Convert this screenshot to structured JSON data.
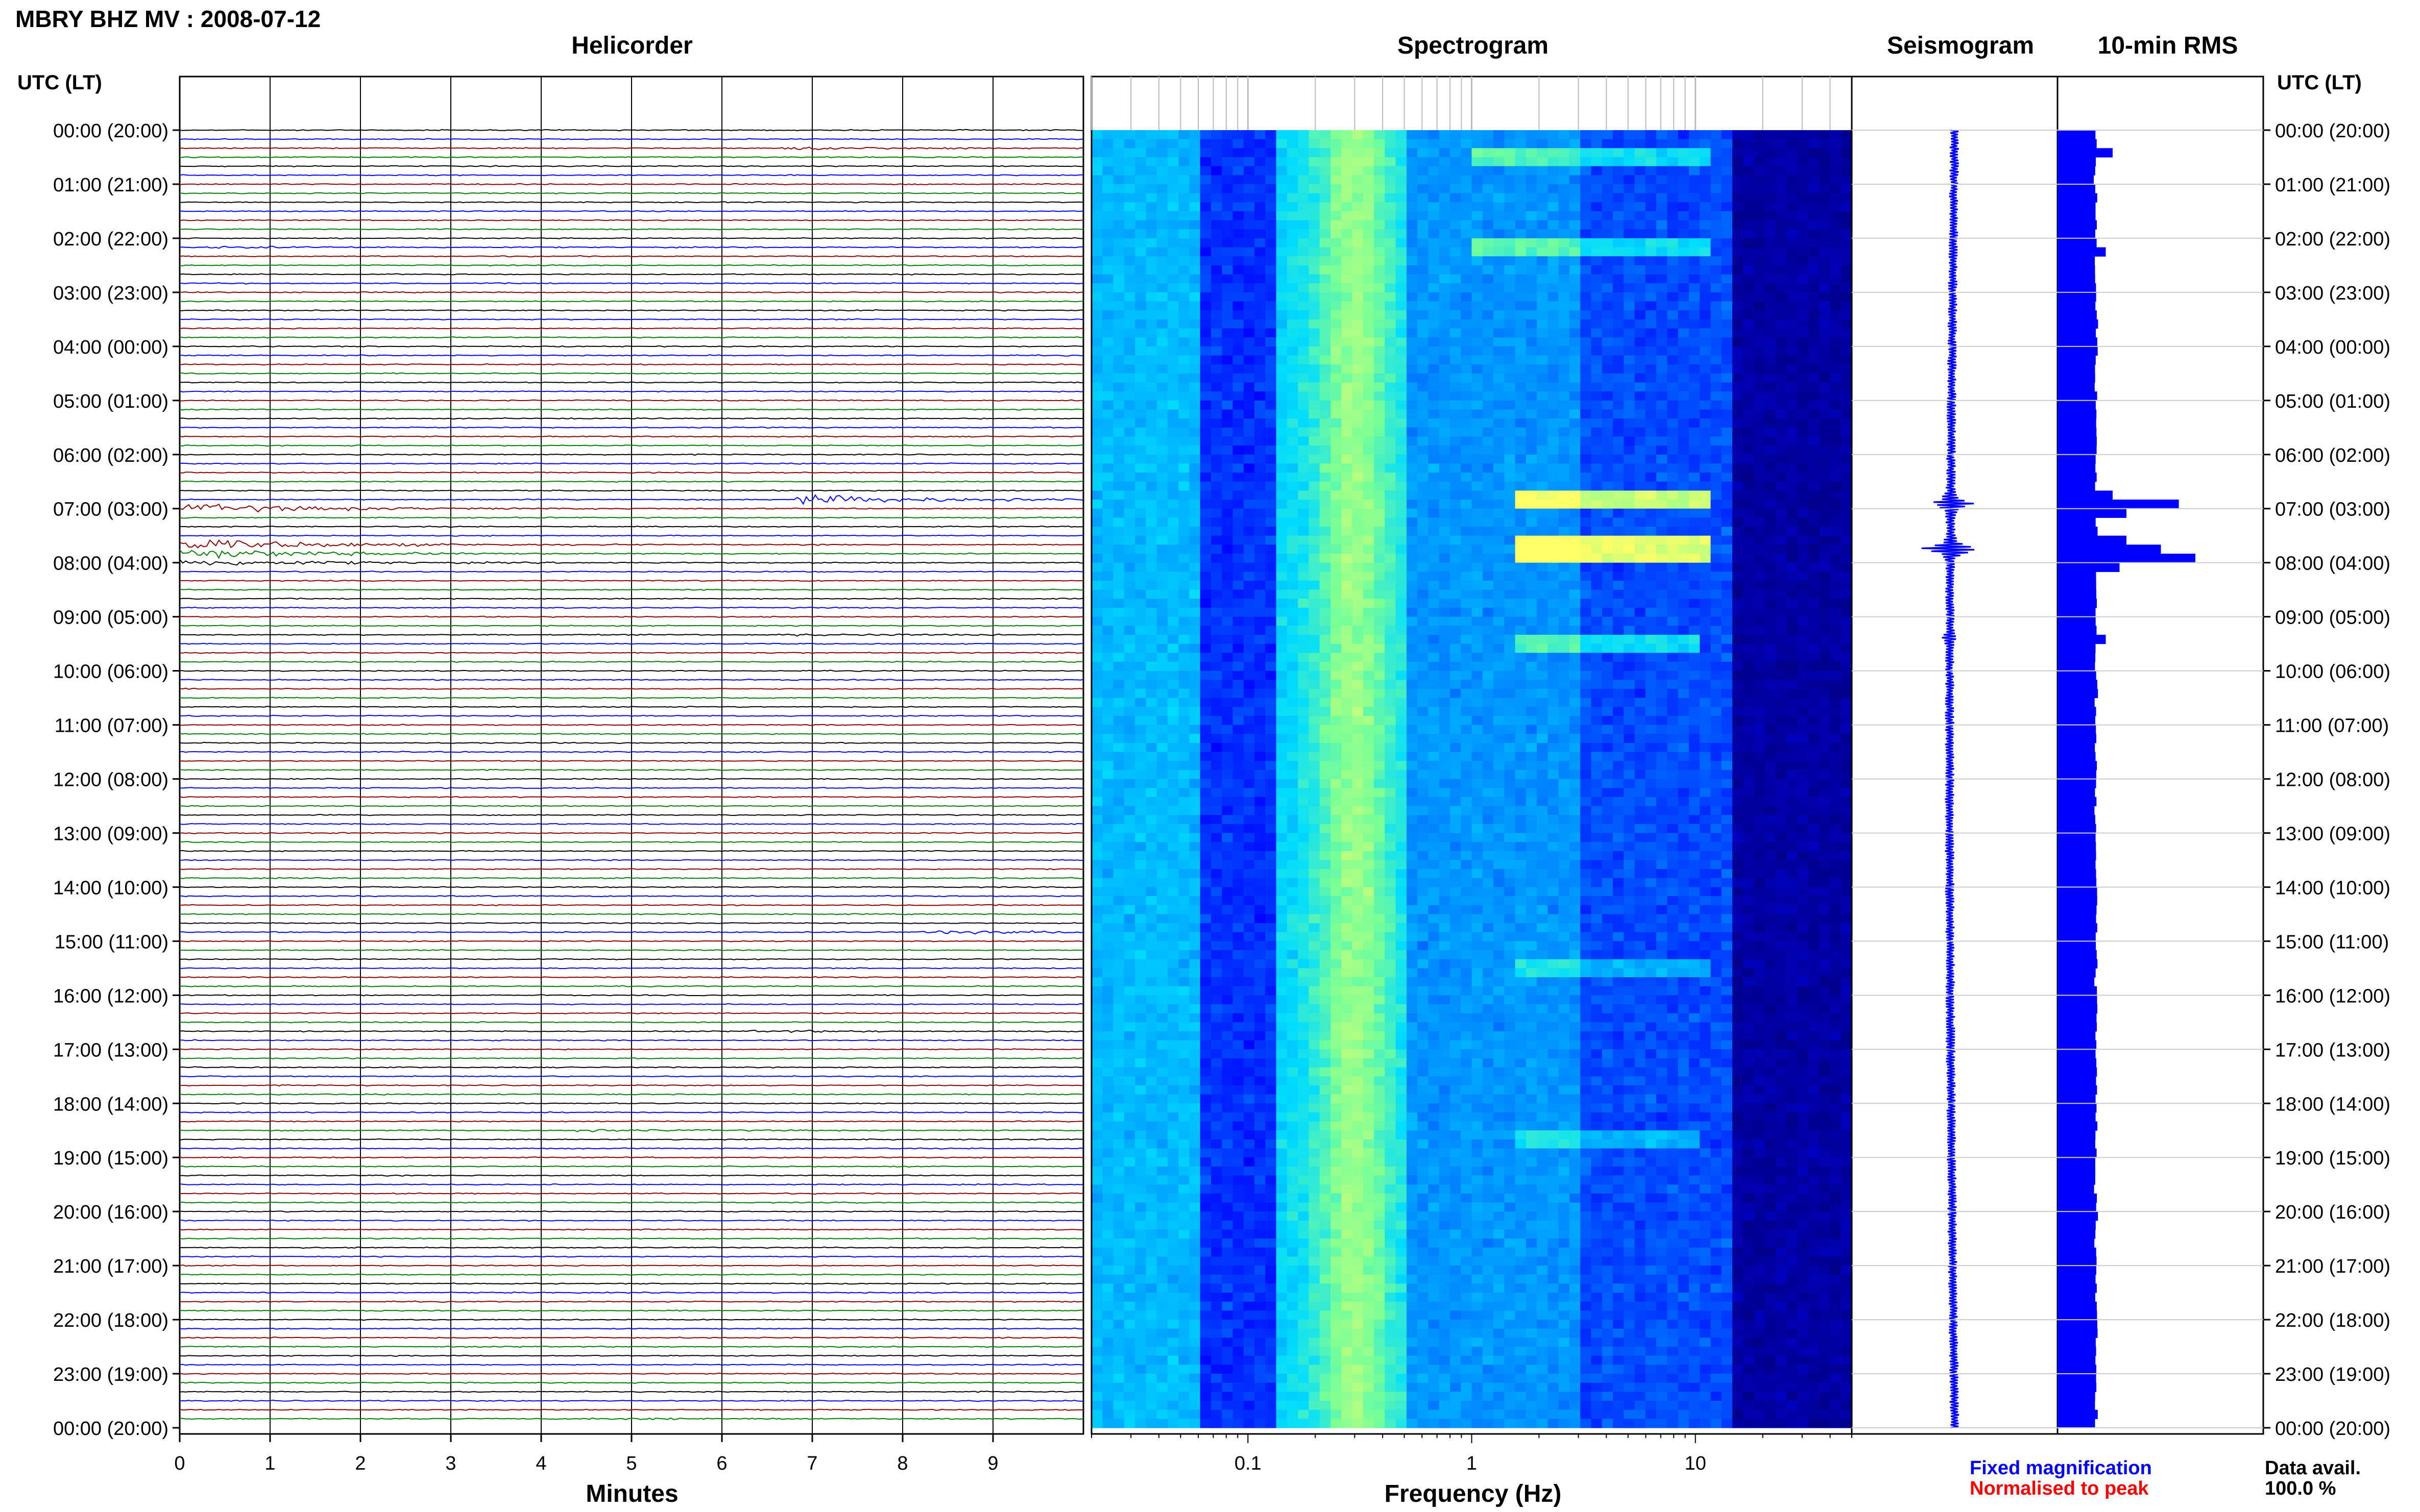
{
  "header": {
    "station_title": "MBRY BHZ MV : 2008-07-12",
    "panels": [
      "Helicorder",
      "Spectrogram",
      "Seismogram",
      "10-min RMS"
    ],
    "utc_label": "UTC (LT)"
  },
  "legend": {
    "fixed": "Fixed magnification",
    "normalised": "Normalised to peak",
    "data_avail_label": "Data avail.",
    "data_avail_value": "100.0 %"
  },
  "colors": {
    "trace_cycle": [
      "#000000",
      "#0000ff",
      "#8b0000",
      "#008000"
    ],
    "fixed": "#0000ff",
    "normalised": "#ff0000",
    "rms_bar": "#0000ff",
    "spectrogram_low": "#00008b",
    "spectrogram_high": "#ffff66"
  },
  "chart_data": [
    {
      "type": "line",
      "title": "Helicorder",
      "xlabel": "Minutes",
      "x_ticks": [
        "0",
        "1",
        "2",
        "3",
        "4",
        "5",
        "6",
        "7",
        "8",
        "9"
      ],
      "xlim": [
        0,
        10
      ],
      "ylim": [
        0,
        24
      ],
      "time_labels": [
        "00:00 (20:00)",
        "01:00 (21:00)",
        "02:00 (22:00)",
        "03:00 (23:00)",
        "04:00 (00:00)",
        "05:00 (01:00)",
        "06:00 (02:00)",
        "07:00 (03:00)",
        "08:00 (04:00)",
        "09:00 (05:00)",
        "10:00 (06:00)",
        "11:00 (07:00)",
        "12:00 (08:00)",
        "13:00 (09:00)",
        "14:00 (10:00)",
        "15:00 (11:00)",
        "16:00 (12:00)",
        "17:00 (13:00)",
        "18:00 (14:00)",
        "19:00 (15:00)",
        "20:00 (16:00)",
        "21:00 (17:00)",
        "22:00 (18:00)",
        "23:00 (19:00)",
        "00:00 (20:00)"
      ],
      "traces_per_hour": 6,
      "events": [
        {
          "hour": 0.3,
          "minute": 6.8,
          "amplitude": 3
        },
        {
          "hour": 2.2,
          "minute": 0.5,
          "amplitude": 2
        },
        {
          "hour": 7.0,
          "minute": 0.0,
          "amplitude": 8
        },
        {
          "hour": 6.83,
          "minute": 7.0,
          "amplitude": 7
        },
        {
          "hour": 7.67,
          "minute": 0.0,
          "amplitude": 10
        },
        {
          "hour": 7.83,
          "minute": 0.0,
          "amplitude": 9
        },
        {
          "hour": 8.0,
          "minute": 0.0,
          "amplitude": 6
        },
        {
          "hour": 9.3,
          "minute": 6.8,
          "amplitude": 2
        },
        {
          "hour": 14.8,
          "minute": 8.4,
          "amplitude": 4
        },
        {
          "hour": 16.7,
          "minute": 6.5,
          "amplitude": 2
        },
        {
          "hour": 18.5,
          "minute": 4.5,
          "amplitude": 2
        },
        {
          "hour": 23.8,
          "minute": 4.7,
          "amplitude": 2
        }
      ]
    },
    {
      "type": "heatmap",
      "title": "Spectrogram",
      "xlabel": "Frequency (Hz)",
      "x_scale": "log",
      "xlim": [
        0.02,
        50
      ],
      "x_ticks": [
        "0.1",
        "1",
        "10"
      ],
      "ylim": [
        0,
        24
      ],
      "events": [
        {
          "hour": 0.45,
          "fmin": 1.0,
          "fmax": 12,
          "intensity": 0.45
        },
        {
          "hour": 2.2,
          "fmin": 1.0,
          "fmax": 12,
          "intensity": 0.45
        },
        {
          "hour": 6.9,
          "fmin": 1.5,
          "fmax": 12,
          "intensity": 0.9
        },
        {
          "hour": 7.75,
          "fmin": 1.5,
          "fmax": 12,
          "intensity": 1.0
        },
        {
          "hour": 9.45,
          "fmin": 1.5,
          "fmax": 10,
          "intensity": 0.45
        },
        {
          "hour": 15.5,
          "fmin": 1.5,
          "fmax": 12,
          "intensity": 0.3
        },
        {
          "hour": 18.6,
          "fmin": 1.5,
          "fmax": 10,
          "intensity": 0.3
        }
      ]
    },
    {
      "type": "line",
      "title": "Seismogram",
      "ylim": [
        0,
        24
      ],
      "bursts": [
        {
          "hour": 6.9,
          "amplitude": 0.45
        },
        {
          "hour": 7.75,
          "amplitude": 0.55
        },
        {
          "hour": 9.4,
          "amplitude": 0.08
        }
      ]
    },
    {
      "type": "bar",
      "title": "10-min RMS",
      "ylim": [
        0,
        24
      ],
      "baseline": 0.28,
      "peaks": [
        {
          "hour": 0.33,
          "value": 0.4
        },
        {
          "hour": 2.2,
          "value": 0.35
        },
        {
          "hour": 6.67,
          "value": 0.4
        },
        {
          "hour": 6.83,
          "value": 0.88
        },
        {
          "hour": 7.0,
          "value": 0.5
        },
        {
          "hour": 7.5,
          "value": 0.5
        },
        {
          "hour": 7.67,
          "value": 0.75
        },
        {
          "hour": 7.83,
          "value": 1.0
        },
        {
          "hour": 8.0,
          "value": 0.45
        },
        {
          "hour": 9.33,
          "value": 0.35
        }
      ]
    }
  ]
}
